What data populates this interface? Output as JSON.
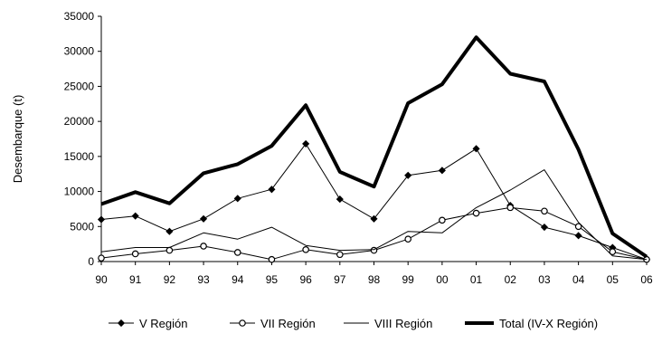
{
  "chart_data": {
    "type": "line",
    "title": "",
    "xlabel": "",
    "ylabel": "Desembarque  (t)",
    "x": [
      "90",
      "91",
      "92",
      "93",
      "94",
      "95",
      "96",
      "97",
      "98",
      "99",
      "00",
      "01",
      "02",
      "03",
      "04",
      "05",
      "06"
    ],
    "ylim": [
      0,
      35000
    ],
    "yticks": [
      "0",
      "5000",
      "10000",
      "15000",
      "20000",
      "25000",
      "30000",
      "35000"
    ],
    "grid": false,
    "legend_position": "bottom",
    "series": [
      {
        "name": "V Región",
        "marker": "diamond",
        "color": "#000000",
        "values": [
          6000,
          6500,
          4300,
          6100,
          9000,
          10300,
          16800,
          8900,
          6100,
          12300,
          13000,
          16100,
          8000,
          4900,
          3700,
          2000,
          300
        ]
      },
      {
        "name": "VII Región",
        "marker": "circle",
        "color": "#000000",
        "values": [
          500,
          1100,
          1600,
          2200,
          1300,
          300,
          1700,
          1000,
          1600,
          3200,
          5900,
          6900,
          7700,
          7200,
          5000,
          1400,
          300
        ]
      },
      {
        "name": "VIII Región",
        "marker": "none",
        "color": "#000000",
        "values": [
          1400,
          2000,
          2000,
          4100,
          3200,
          4900,
          2300,
          1600,
          1700,
          4300,
          4100,
          7700,
          10200,
          13100,
          5600,
          800,
          300
        ]
      },
      {
        "name": "Total (IV-X Región)",
        "marker": "none",
        "color": "#000000",
        "bold": true,
        "values": [
          8200,
          9900,
          8300,
          12600,
          13900,
          16500,
          22300,
          12800,
          10700,
          22600,
          25300,
          32000,
          26800,
          25700,
          16000,
          4000,
          700
        ]
      }
    ]
  }
}
